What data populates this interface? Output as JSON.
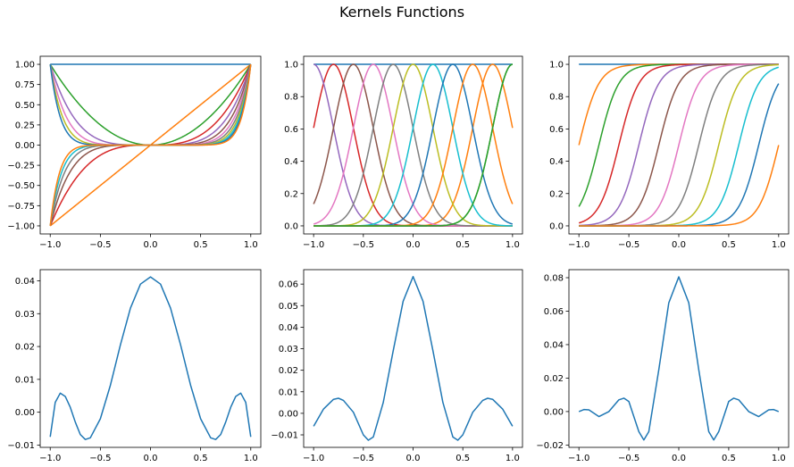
{
  "figure": {
    "title": "Kernels Functions"
  },
  "palette": [
    "#1f77b4",
    "#ff7f0e",
    "#2ca02c",
    "#d62728",
    "#9467bd",
    "#8c564b",
    "#e377c2",
    "#7f7f7f",
    "#bcbd22",
    "#17becf"
  ],
  "chart_data": [
    {
      "type": "line",
      "description_generator": "polynomial",
      "x_range": [
        -1,
        1
      ],
      "xlim": [
        -1.1,
        1.1
      ],
      "ylim": [
        -1.1,
        1.1
      ],
      "xticks": [
        -1.0,
        -0.5,
        0.0,
        0.5,
        1.0
      ],
      "yticks": [
        -1.0,
        -0.75,
        -0.5,
        -0.25,
        0.0,
        0.25,
        0.5,
        0.75,
        1.0
      ],
      "series": [
        {
          "expr": "x^0",
          "color": "#1f77b4"
        },
        {
          "expr": "x^1",
          "color": "#ff7f0e"
        },
        {
          "expr": "x^2",
          "color": "#2ca02c"
        },
        {
          "expr": "x^3",
          "color": "#d62728"
        },
        {
          "expr": "x^4",
          "color": "#9467bd"
        },
        {
          "expr": "x^5",
          "color": "#8c564b"
        },
        {
          "expr": "x^6",
          "color": "#e377c2"
        },
        {
          "expr": "x^7",
          "color": "#7f7f7f"
        },
        {
          "expr": "x^8",
          "color": "#bcbd22"
        },
        {
          "expr": "x^9",
          "color": "#17becf"
        },
        {
          "expr": "x^10",
          "color": "#1f77b4"
        },
        {
          "expr": "x^11",
          "color": "#ff7f0e"
        }
      ]
    },
    {
      "type": "line",
      "description_generator": "gaussian",
      "x_range": [
        -1,
        1
      ],
      "centers": [
        0.8,
        1.0,
        -0.8,
        -1.0,
        -0.6,
        -0.4,
        -0.2,
        0.0,
        0.2,
        0.4,
        0.6,
        1.0
      ],
      "width": 0.2,
      "constant_series": true,
      "xlim": [
        -1.1,
        1.1
      ],
      "ylim": [
        -0.05,
        1.05
      ],
      "xticks": [
        -1.0,
        -0.5,
        0.0,
        0.5,
        1.0
      ],
      "yticks": [
        0.0,
        0.2,
        0.4,
        0.6,
        0.8,
        1.0
      ]
    },
    {
      "type": "line",
      "description_generator": "sigmoid",
      "x_range": [
        -1,
        1
      ],
      "centers": [
        -1.0,
        -0.8,
        -0.6,
        -0.4,
        -0.2,
        0.0,
        0.2,
        0.4,
        0.6,
        0.8,
        1.0
      ],
      "slope": 10,
      "constant_series": true,
      "xlim": [
        -1.1,
        1.1
      ],
      "ylim": [
        -0.05,
        1.05
      ],
      "xticks": [
        -1.0,
        -0.5,
        0.0,
        0.5,
        1.0
      ],
      "yticks": [
        0.0,
        0.2,
        0.4,
        0.6,
        0.8,
        1.0
      ]
    },
    {
      "type": "line",
      "x_range": [
        -1,
        1
      ],
      "xlim": [
        -1.1,
        1.1
      ],
      "ylim": [
        -0.0107,
        0.0434
      ],
      "xticks": [
        -1.0,
        -0.5,
        0.0,
        0.5,
        1.0
      ],
      "yticks": [
        -0.01,
        0.0,
        0.01,
        0.02,
        0.03,
        0.04
      ],
      "series": [
        {
          "x": [
            -1.0,
            -0.95,
            -0.9,
            -0.85,
            -0.8,
            -0.75,
            -0.7,
            -0.65,
            -0.6,
            -0.5,
            -0.4,
            -0.3,
            -0.2,
            -0.1,
            0.0,
            0.1,
            0.2,
            0.3,
            0.4,
            0.5,
            0.6,
            0.65,
            0.7,
            0.75,
            0.8,
            0.85,
            0.9,
            0.95,
            1.0
          ],
          "y": [
            -0.0075,
            0.003,
            0.0058,
            0.0048,
            0.0015,
            -0.003,
            -0.0068,
            -0.0083,
            -0.0078,
            -0.002,
            0.0082,
            0.0205,
            0.0317,
            0.039,
            0.0412,
            0.039,
            0.0317,
            0.0205,
            0.0082,
            -0.002,
            -0.0078,
            -0.0083,
            -0.0068,
            -0.003,
            0.0015,
            0.0048,
            0.0058,
            0.003,
            -0.0075
          ],
          "color": "#1f77b4"
        }
      ]
    },
    {
      "type": "line",
      "x_range": [
        -1,
        1
      ],
      "xlim": [
        -1.1,
        1.1
      ],
      "ylim": [
        -0.0158,
        0.0667
      ],
      "xticks": [
        -1.0,
        -0.5,
        0.0,
        0.5,
        1.0
      ],
      "yticks": [
        -0.01,
        0.0,
        0.01,
        0.02,
        0.03,
        0.04,
        0.05,
        0.06
      ],
      "series": [
        {
          "x": [
            -1.0,
            -0.9,
            -0.8,
            -0.75,
            -0.7,
            -0.6,
            -0.5,
            -0.45,
            -0.4,
            -0.3,
            -0.2,
            -0.1,
            0.0,
            0.1,
            0.2,
            0.3,
            0.4,
            0.45,
            0.5,
            0.6,
            0.7,
            0.75,
            0.8,
            0.9,
            1.0
          ],
          "y": [
            -0.006,
            0.002,
            0.0065,
            0.007,
            0.006,
            0.0005,
            -0.01,
            -0.0125,
            -0.011,
            0.005,
            0.029,
            0.052,
            0.0635,
            0.052,
            0.029,
            0.005,
            -0.011,
            -0.0125,
            -0.01,
            0.0005,
            0.006,
            0.007,
            0.0065,
            0.002,
            -0.006
          ],
          "color": "#1f77b4"
        }
      ]
    },
    {
      "type": "line",
      "x_range": [
        -1,
        1
      ],
      "xlim": [
        -1.1,
        1.1
      ],
      "ylim": [
        -0.0214,
        0.0848
      ],
      "xticks": [
        -1.0,
        -0.5,
        0.0,
        0.5,
        1.0
      ],
      "yticks": [
        -0.02,
        0.0,
        0.02,
        0.04,
        0.06,
        0.08
      ],
      "series": [
        {
          "x": [
            -1.0,
            -0.95,
            -0.9,
            -0.8,
            -0.7,
            -0.6,
            -0.55,
            -0.5,
            -0.4,
            -0.35,
            -0.3,
            -0.2,
            -0.1,
            0.0,
            0.1,
            0.2,
            0.3,
            0.35,
            0.4,
            0.5,
            0.55,
            0.6,
            0.7,
            0.8,
            0.9,
            0.95,
            1.0
          ],
          "y": [
            0.0,
            0.0012,
            0.001,
            -0.003,
            0.0,
            0.007,
            0.008,
            0.006,
            -0.012,
            -0.017,
            -0.012,
            0.025,
            0.065,
            0.0805,
            0.065,
            0.025,
            -0.012,
            -0.017,
            -0.012,
            0.006,
            0.008,
            0.007,
            0.0,
            -0.003,
            0.001,
            0.0012,
            0.0
          ],
          "color": "#1f77b4"
        }
      ]
    }
  ]
}
